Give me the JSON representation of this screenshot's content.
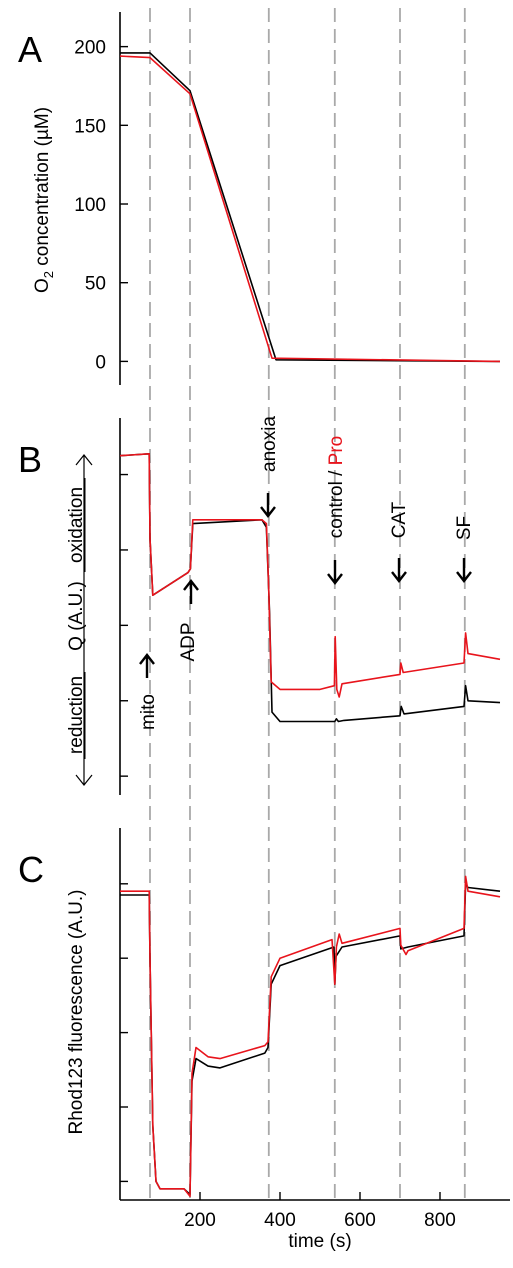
{
  "colors": {
    "control": "#000000",
    "pro": "#e8141c",
    "guides": "#a9a9a9"
  },
  "xaxis": {
    "label": "time (s)",
    "range": [
      0,
      950
    ],
    "ticks": [
      200,
      400,
      600,
      800
    ]
  },
  "guides_s": [
    75,
    175,
    372,
    537,
    700,
    862
  ],
  "chart_data": [
    {
      "panel": "A",
      "type": "line",
      "ylabel": "O2 concentration (µM)",
      "ylabel_main": "O",
      "ylabel_sub": "2",
      "ylabel_rest": " concentration (µM)",
      "ylim": [
        -15,
        222
      ],
      "yticks": [
        0,
        50,
        100,
        150,
        200
      ],
      "series": [
        {
          "key": "control",
          "x": [
            0,
            75,
            175,
            390,
            950
          ],
          "y": [
            196,
            196,
            172,
            1,
            0
          ]
        },
        {
          "key": "pro",
          "x": [
            0,
            75,
            175,
            380,
            950
          ],
          "y": [
            194,
            193,
            170,
            2,
            0
          ]
        }
      ]
    },
    {
      "panel": "B",
      "type": "line",
      "ylabel_left": "reduction",
      "ylabel_mid": "Q (A.U.)",
      "ylabel_right": "oxidation",
      "yunits": "A.U.",
      "ylim": [
        0,
        10
      ],
      "annotations": [
        {
          "text": "mito",
          "x": 75,
          "direction": "up"
        },
        {
          "text": "ADP",
          "x": 175,
          "direction": "up"
        },
        {
          "text": "anoxia",
          "x": 372,
          "direction": "down"
        },
        {
          "text_black": "control / ",
          "text_red": "Pro",
          "x": 537,
          "direction": "down"
        },
        {
          "text": "CAT",
          "x": 700,
          "direction": "down"
        },
        {
          "text": "SF",
          "x": 862,
          "direction": "down"
        }
      ],
      "series": [
        {
          "key": "control",
          "x": [
            0,
            73,
            75,
            82,
            170,
            176,
            182,
            355,
            366,
            374,
            380,
            400,
            500,
            537,
            541,
            546,
            560,
            700,
            703,
            710,
            860,
            864,
            870,
            950
          ],
          "y": [
            9.0,
            9.05,
            6.8,
            5.3,
            5.9,
            6.0,
            7.2,
            7.3,
            7.1,
            4.8,
            2.2,
            1.95,
            1.95,
            1.95,
            2.02,
            1.95,
            1.98,
            2.1,
            2.35,
            2.15,
            2.35,
            2.9,
            2.5,
            2.45
          ]
        },
        {
          "key": "pro",
          "x": [
            0,
            73,
            75,
            82,
            170,
            176,
            182,
            355,
            366,
            372,
            378,
            400,
            500,
            536,
            538,
            542,
            548,
            555,
            700,
            702,
            708,
            860,
            864,
            870,
            950
          ],
          "y": [
            9.0,
            9.05,
            6.8,
            5.3,
            5.9,
            6.0,
            7.3,
            7.3,
            7.2,
            5.4,
            3.0,
            2.8,
            2.8,
            2.9,
            4.2,
            2.8,
            2.6,
            2.95,
            3.2,
            3.5,
            3.25,
            3.5,
            4.3,
            3.75,
            3.6
          ]
        }
      ]
    },
    {
      "panel": "C",
      "type": "line",
      "ylabel": "Rhod123 fluorescence (A.U.)",
      "ylim": [
        0,
        10
      ],
      "series": [
        {
          "key": "control",
          "x": [
            0,
            73,
            75,
            82,
            90,
            100,
            160,
            175,
            180,
            190,
            220,
            250,
            362,
            370,
            378,
            400,
            535,
            537,
            540,
            555,
            700,
            702,
            720,
            860,
            864,
            870,
            950
          ],
          "y": [
            8.2,
            8.2,
            6.5,
            2.0,
            0.5,
            0.3,
            0.3,
            0.15,
            3.2,
            3.8,
            3.6,
            3.55,
            3.95,
            4.1,
            5.8,
            6.3,
            6.8,
            5.8,
            6.55,
            6.8,
            7.1,
            6.75,
            6.8,
            7.1,
            8.5,
            8.4,
            8.3
          ]
        },
        {
          "key": "pro",
          "x": [
            0,
            73,
            75,
            82,
            90,
            100,
            160,
            175,
            180,
            190,
            220,
            250,
            362,
            370,
            378,
            400,
            530,
            537,
            541,
            548,
            555,
            700,
            702,
            715,
            720,
            860,
            864,
            870,
            950
          ],
          "y": [
            8.3,
            8.3,
            6.5,
            2.0,
            0.5,
            0.3,
            0.3,
            0.1,
            3.4,
            4.1,
            3.85,
            3.8,
            4.15,
            4.25,
            6.0,
            6.5,
            7.0,
            5.8,
            6.8,
            7.15,
            6.9,
            7.3,
            6.85,
            6.6,
            6.7,
            7.3,
            8.7,
            8.3,
            8.15
          ]
        }
      ]
    }
  ]
}
